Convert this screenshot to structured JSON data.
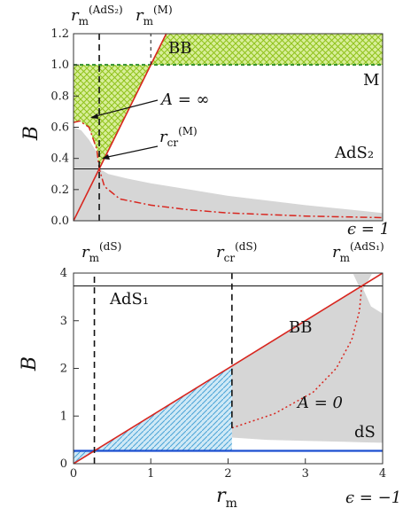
{
  "colors": {
    "boundary_red": "#d8261f",
    "hatch_green": "#8fc21a",
    "fill_green": "#d8ee9a",
    "dashed_green": "#2f8f2a",
    "grey_region": "#d6d6d6",
    "hatch_blue": "#4aa3d6",
    "fill_blue": "#cfe9f6",
    "line_blue": "#1c4fd0",
    "ref_line": "#111111"
  },
  "chart_data": [
    {
      "type": "area",
      "title": "",
      "xlabel": "",
      "ylabel": "B",
      "xlim": [
        0,
        4
      ],
      "ylim": [
        0,
        1.2
      ],
      "y_ticks": [
        "0.0",
        "0.2",
        "0.4",
        "0.6",
        "0.8",
        "1.0",
        "1.2"
      ],
      "grid": false,
      "epsilon_label": "ϵ = 1",
      "series": [
        {
          "name": "BB",
          "kind": "line",
          "x": [
            0.0,
            1.2
          ],
          "values": [
            0.0,
            1.2
          ]
        },
        {
          "name": "M",
          "kind": "line",
          "x": [
            0.0,
            4.0
          ],
          "values": [
            1.0,
            1.0
          ]
        },
        {
          "name": "AdS₂",
          "kind": "line",
          "x": [
            0.0,
            4.0
          ],
          "values": [
            0.333,
            0.333
          ]
        },
        {
          "name": "A = ∞",
          "kind": "line",
          "x": [
            0.0,
            0.08,
            0.2,
            0.3,
            0.333,
            0.4,
            0.6,
            1.0,
            1.5,
            2.0,
            3.0,
            4.0
          ],
          "values": [
            0.63,
            0.64,
            0.6,
            0.46,
            0.333,
            0.22,
            0.14,
            0.1,
            0.07,
            0.05,
            0.03,
            0.02
          ]
        }
      ],
      "regions": [
        {
          "kind": "hatched-green",
          "x": [
            1.0,
            4.0
          ],
          "values": [
            1.0,
            1.2
          ]
        },
        {
          "kind": "hatched-green",
          "x": [
            0.0,
            1.0
          ],
          "values": [
            1.0,
            1.0
          ]
        },
        {
          "kind": "grey",
          "x": [
            0.0,
            0.1,
            0.2,
            0.3,
            0.333,
            0.45,
            0.7,
            1.0,
            1.5,
            2.0,
            3.0,
            4.0
          ],
          "values": [
            0.6,
            0.58,
            0.52,
            0.44,
            0.333,
            0.3,
            0.27,
            0.24,
            0.2,
            0.16,
            0.1,
            0.05
          ]
        }
      ],
      "annotations": {
        "rm_ads2": "r",
        "rm_ads2_sub": "m",
        "rm_ads2_sup": "(AdS₂)",
        "rm_m": "r",
        "rm_m_sub": "m",
        "rm_m_sup": "(M)",
        "bb": "BB",
        "m": "M",
        "ads2": "AdS₂",
        "a_inf": "A = ∞",
        "rcr_m": "r",
        "rcr_m_sub": "cr",
        "rcr_m_sup": "(M)"
      },
      "markers": {
        "rm_ads2": 0.333,
        "rm_m": 1.0
      }
    },
    {
      "type": "area",
      "title": "",
      "xlabel": "rm",
      "ylabel": "B",
      "xlim": [
        0,
        4
      ],
      "ylim": [
        0,
        4
      ],
      "x_ticks": [
        "0",
        "1",
        "2",
        "3",
        "4"
      ],
      "y_ticks": [
        "0",
        "1",
        "2",
        "3",
        "4"
      ],
      "grid": false,
      "epsilon_label": "ϵ = −1",
      "series": [
        {
          "name": "BB",
          "kind": "line",
          "x": [
            0.0,
            4.0
          ],
          "values": [
            0.0,
            4.0
          ]
        },
        {
          "name": "AdS₁",
          "kind": "line",
          "x": [
            0.0,
            4.0
          ],
          "values": [
            3.73,
            3.73
          ]
        },
        {
          "name": "dS",
          "kind": "line",
          "x": [
            0.0,
            4.0
          ],
          "values": [
            0.27,
            0.27
          ]
        },
        {
          "name": "A = 0",
          "kind": "line",
          "x": [
            2.05,
            2.6,
            3.1,
            3.4,
            3.6,
            3.7,
            3.73
          ],
          "values": [
            0.75,
            1.05,
            1.5,
            2.0,
            2.6,
            3.2,
            3.73
          ]
        }
      ],
      "regions": [
        {
          "kind": "hatched-blue",
          "x": [
            0.27,
            2.05
          ],
          "values": [
            0.27,
            2.05
          ]
        },
        {
          "kind": "grey",
          "x": [
            2.05,
            2.5,
            3.0,
            3.5,
            3.73,
            4.0
          ],
          "values": [
            0.55,
            0.5,
            0.48,
            0.46,
            0.45,
            0.44
          ]
        }
      ],
      "annotations": {
        "rm_ds": "r",
        "rm_ds_sub": "m",
        "rm_ds_sup": "(dS)",
        "rcr_ds": "r",
        "rcr_ds_sub": "cr",
        "rcr_ds_sup": "(dS)",
        "rm_ads1": "r",
        "rm_ads1_sub": "m",
        "rm_ads1_sup": "(AdS₁)",
        "ads1": "AdS₁",
        "bb": "BB",
        "a0": "A = 0",
        "ds": "dS"
      },
      "markers": {
        "rm_ds": 0.27,
        "rcr_ds": 2.05
      }
    }
  ]
}
